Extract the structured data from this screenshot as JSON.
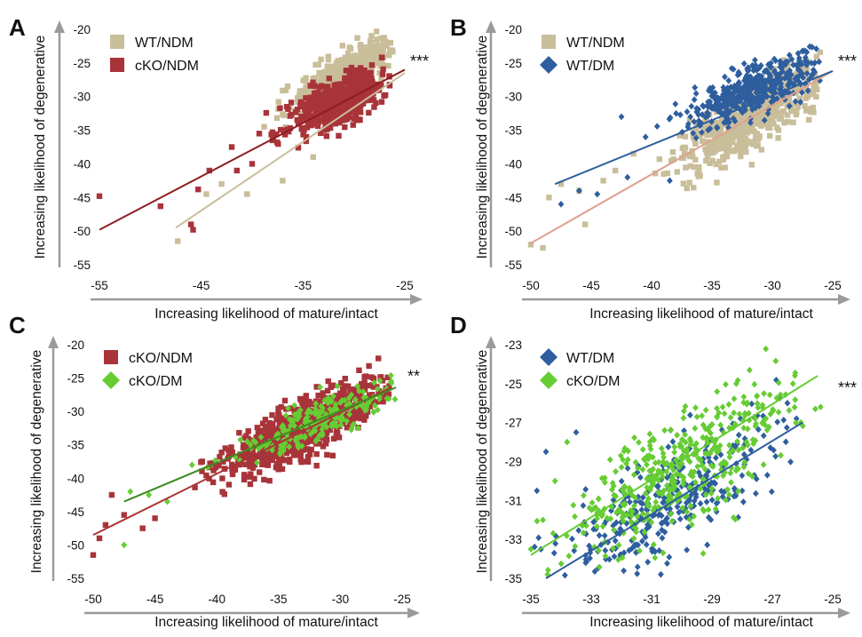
{
  "chart_data": [
    {
      "panel": "A",
      "type": "scatter",
      "xlabel": "Increasing likelihood of mature/intact",
      "ylabel": "Increasing likelihood of degenerative",
      "xlim": [
        -55,
        -25
      ],
      "ylim": [
        -55,
        -20
      ],
      "xticks": [
        -55,
        -45,
        -35,
        -25
      ],
      "yticks": [
        -20,
        -25,
        -30,
        -35,
        -40,
        -45,
        -50,
        -55
      ],
      "significance": "***",
      "legend_position": "top-left",
      "series": [
        {
          "name": "WT/NDM",
          "marker": "square",
          "color": "#c9be9a",
          "n": 480,
          "seed": 11,
          "cloud": {
            "x_mean": -31,
            "x_sd": 2.6,
            "x_range": [
              -47.5,
              -26
            ],
            "slope": 0.8,
            "intercept": -2.0,
            "y_sd": 1.6
          },
          "outliers": [
            [
              -47.3,
              -51.5
            ],
            [
              -44.5,
              -44.5
            ],
            [
              -43,
              -43
            ],
            [
              -40.5,
              -44.5
            ],
            [
              -37,
              -42.5
            ],
            [
              -34,
              -39
            ]
          ],
          "fit": {
            "x": [
              -47.5,
              -25
            ],
            "y": [
              -49.5,
              -26.5
            ]
          }
        },
        {
          "name": "cKO/NDM",
          "marker": "square",
          "color": "#a8343a",
          "n": 580,
          "seed": 23,
          "cloud": {
            "x_mean": -31.5,
            "x_sd": 2.4,
            "x_range": [
              -46,
              -26
            ],
            "slope": 0.62,
            "intercept": -11.3,
            "y_sd": 1.7
          },
          "outliers": [
            [
              -55,
              -44.8
            ],
            [
              -49,
              -46.3
            ],
            [
              -46,
              -49
            ],
            [
              -45.8,
              -49.8
            ],
            [
              -45.3,
              -43.8
            ],
            [
              -44.2,
              -41
            ],
            [
              -42,
              -37.5
            ],
            [
              -41.5,
              -41
            ],
            [
              -40,
              -40
            ],
            [
              -39.3,
              -35.5
            ],
            [
              -38,
              -36.5
            ]
          ],
          "fit": {
            "x": [
              -55,
              -25
            ],
            "y": [
              -49.8,
              -26
            ]
          }
        }
      ]
    },
    {
      "panel": "B",
      "type": "scatter",
      "xlabel": "Increasing likelihood of mature/intact",
      "ylabel": "Increasing likelihood of degenerative",
      "xlim": [
        -50,
        -25
      ],
      "ylim": [
        -55,
        -20
      ],
      "xticks": [
        -50,
        -45,
        -40,
        -35,
        -30,
        -25
      ],
      "yticks": [
        -20,
        -25,
        -30,
        -35,
        -40,
        -45,
        -50,
        -55
      ],
      "significance": "***",
      "legend_position": "top-left",
      "series": [
        {
          "name": "WT/NDM",
          "marker": "square",
          "color": "#c9be9a",
          "n": 620,
          "seed": 37,
          "cloud": {
            "x_mean": -31.5,
            "x_sd": 2.8,
            "x_range": [
              -50,
              -26
            ],
            "slope": 1.05,
            "intercept": 0.3,
            "y_sd": 2.3
          },
          "outliers": [
            [
              -50,
              -52
            ],
            [
              -49,
              -52.5
            ],
            [
              -48.5,
              -45
            ],
            [
              -47.5,
              -43
            ],
            [
              -46,
              -44
            ],
            [
              -45.5,
              -49
            ],
            [
              -44,
              -42.5
            ],
            [
              -43,
              -41
            ],
            [
              -41.5,
              -38.5
            ],
            [
              -39,
              -41.5
            ]
          ],
          "fit": {
            "x": [
              -50,
              -25
            ],
            "y": [
              -51.8,
              -26.2
            ]
          }
        },
        {
          "name": "WT/DM",
          "marker": "diamond",
          "color": "#2e5e9e",
          "n": 460,
          "seed": 41,
          "cloud": {
            "x_mean": -31.5,
            "x_sd": 3.0,
            "x_range": [
              -48,
              -26
            ],
            "slope": 0.72,
            "intercept": -6.3,
            "y_sd": 1.8
          },
          "outliers": [
            [
              -47.5,
              -46
            ],
            [
              -46,
              -44
            ],
            [
              -44.5,
              -44.5
            ],
            [
              -42.5,
              -33
            ],
            [
              -42,
              -42
            ],
            [
              -40.5,
              -36
            ],
            [
              -38.5,
              -42.5
            ]
          ],
          "fit": {
            "x": [
              -48,
              -25
            ],
            "y": [
              -43,
              -26.2
            ]
          }
        }
      ]
    },
    {
      "panel": "C",
      "type": "scatter",
      "xlabel": "Increasing likelihood of mature/intact",
      "ylabel": "Increasing likelihood of degenerative",
      "xlim": [
        -50,
        -25
      ],
      "ylim": [
        -55,
        -20
      ],
      "xticks": [
        -50,
        -45,
        -40,
        -35,
        -30,
        -25
      ],
      "yticks": [
        -20,
        -25,
        -30,
        -35,
        -40,
        -45,
        -50,
        -55
      ],
      "significance": "**",
      "legend_position": "top-left",
      "series": [
        {
          "name": "cKO/NDM",
          "marker": "square",
          "color": "#a8343a",
          "n": 900,
          "seed": 53,
          "cloud": {
            "x_mean": -33,
            "x_sd": 3.3,
            "x_range": [
              -50,
              -26
            ],
            "slope": 0.9,
            "intercept": -2.8,
            "y_sd": 1.9
          },
          "outliers": [
            [
              -50,
              -51.5
            ],
            [
              -49.5,
              -49
            ],
            [
              -49,
              -47
            ],
            [
              -48.5,
              -42.5
            ],
            [
              -47.5,
              -45.5
            ],
            [
              -46,
              -47.5
            ],
            [
              -45,
              -46
            ]
          ],
          "fit": {
            "x": [
              -50,
              -26
            ],
            "y": [
              -48.5,
              -26.5
            ]
          }
        },
        {
          "name": "cKO/DM",
          "marker": "diamond",
          "color": "#66cc33",
          "n": 220,
          "seed": 67,
          "cloud": {
            "x_mean": -32,
            "x_sd": 3.0,
            "x_range": [
              -47.5,
              -25.5
            ],
            "slope": 0.78,
            "intercept": -6.8,
            "y_sd": 1.5
          },
          "outliers": [
            [
              -47.5,
              -50
            ],
            [
              -47,
              -42
            ],
            [
              -45.5,
              -42.5
            ],
            [
              -44,
              -43.5
            ],
            [
              -42,
              -38
            ]
          ],
          "fit": {
            "x": [
              -47.5,
              -25.5
            ],
            "y": [
              -43.5,
              -26.4
            ]
          }
        }
      ]
    },
    {
      "panel": "D",
      "type": "scatter",
      "xlabel": "Increasing likelihood of mature/intact",
      "ylabel": "Increasing likelihood of degenerative",
      "xlim": [
        -35,
        -25
      ],
      "ylim": [
        -35,
        -23
      ],
      "xticks": [
        -35,
        -33,
        -31,
        -29,
        -27,
        -25
      ],
      "yticks": [
        -23,
        -25,
        -27,
        -29,
        -31,
        -33,
        -35
      ],
      "significance": "***",
      "legend_position": "top-left",
      "series": [
        {
          "name": "WT/DM",
          "marker": "diamond",
          "color": "#2e5e9e",
          "n": 330,
          "seed": 71,
          "cloud": {
            "x_mean": -30.5,
            "x_sd": 1.9,
            "x_range": [
              -35,
              -26
            ],
            "slope": 0.95,
            "intercept": -2.2,
            "y_sd": 1.4
          },
          "outliers": [
            [
              -34.8,
              -30.5
            ],
            [
              -34.5,
              -28.5
            ],
            [
              -33.5,
              -27.5
            ],
            [
              -26.5,
              -26
            ],
            [
              -26.2,
              -26.8
            ]
          ],
          "fit": {
            "x": [
              -34.5,
              -26
            ],
            "y": [
              -35,
              -27
            ]
          }
        },
        {
          "name": "cKO/DM",
          "marker": "diamond",
          "color": "#66cc33",
          "n": 420,
          "seed": 83,
          "cloud": {
            "x_mean": -30.2,
            "x_sd": 2.0,
            "x_range": [
              -35,
              -25.5
            ],
            "slope": 0.85,
            "intercept": -3.8,
            "y_sd": 1.5
          },
          "outliers": [
            [
              -35,
              -33.5
            ],
            [
              -34.6,
              -32
            ],
            [
              -34.2,
              -30
            ],
            [
              -33.8,
              -28
            ],
            [
              -25.4,
              -26.2
            ]
          ],
          "fit": {
            "x": [
              -35,
              -25.5
            ],
            "y": [
              -33.8,
              -24.6
            ]
          }
        }
      ]
    }
  ]
}
